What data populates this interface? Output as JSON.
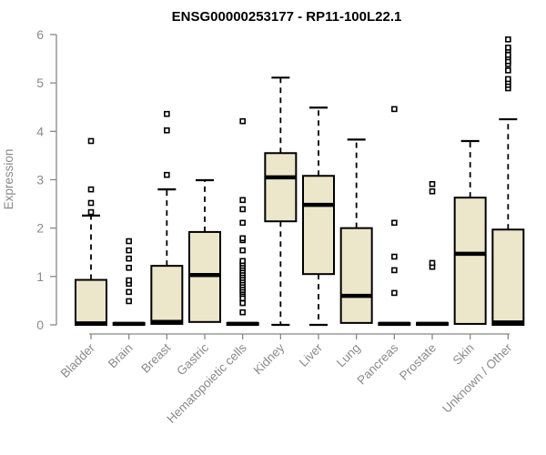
{
  "chart": {
    "colors": {
      "box_fill": "#ECE6CB",
      "box_border": "#000000",
      "median": "#000000",
      "whisker": "#000000",
      "outlier_stroke": "#000000",
      "outlier_fill": "#ffffff",
      "axis_line": "#888888",
      "axis_text": "#8A8A8A",
      "title_text": "#000000",
      "background": "#ffffff"
    }
  },
  "chart_data": {
    "type": "boxplot",
    "title": "ENSG00000253177 - RP11-100L22.1",
    "xlabel": "",
    "ylabel": "Expression",
    "ylim": [
      0,
      6
    ],
    "yticks": [
      0,
      1,
      2,
      3,
      4,
      5,
      6
    ],
    "grid": false,
    "legend": false,
    "categories": [
      "Bladder",
      "Brain",
      "Breast",
      "Gastric",
      "Hematopoietic cells",
      "Kidney",
      "Liver",
      "Lung",
      "Pancreas",
      "Prostate",
      "Skin",
      "Unknown / Other"
    ],
    "boxes": [
      {
        "label": "Bladder",
        "low": 0,
        "q1": 0,
        "median": 0.03,
        "q3": 0.93,
        "high": 2.26,
        "outliers": [
          2.33,
          2.52,
          2.8,
          3.8
        ]
      },
      {
        "label": "Brain",
        "low": 0,
        "q1": 0,
        "median": 0.02,
        "q3": 0.04,
        "high": 0.04,
        "outliers": [
          0.49,
          0.68,
          0.85,
          0.92,
          1.18,
          1.37,
          1.54,
          1.73
        ]
      },
      {
        "label": "Breast",
        "low": 0.02,
        "q1": 0.02,
        "median": 0.06,
        "q3": 1.22,
        "high": 2.8,
        "outliers": [
          3.1,
          4.02,
          4.36
        ]
      },
      {
        "label": "Gastric",
        "low": 0.06,
        "q1": 0.06,
        "median": 1.03,
        "q3": 1.92,
        "high": 2.99,
        "outliers": []
      },
      {
        "label": "Hematopoietic cells",
        "low": 0,
        "q1": 0,
        "median": 0.02,
        "q3": 0.04,
        "high": 0.04,
        "outliers": [
          0.26,
          0.45,
          0.55,
          0.64,
          0.68,
          0.72,
          0.77,
          0.82,
          0.87,
          0.92,
          0.97,
          1.02,
          1.07,
          1.12,
          1.17,
          1.22,
          1.27,
          1.32,
          1.54,
          1.75,
          1.79,
          2.11,
          2.39,
          2.58,
          4.21
        ]
      },
      {
        "label": "Kidney",
        "low": 0,
        "q1": 2.14,
        "median": 3.05,
        "q3": 3.55,
        "high": 5.11,
        "outliers": []
      },
      {
        "label": "Liver",
        "low": 0,
        "q1": 1.05,
        "median": 2.48,
        "q3": 3.08,
        "high": 4.49,
        "outliers": []
      },
      {
        "label": "Lung",
        "low": 0.04,
        "q1": 0.04,
        "median": 0.6,
        "q3": 2.0,
        "high": 3.83,
        "outliers": []
      },
      {
        "label": "Pancreas",
        "low": 0,
        "q1": 0,
        "median": 0.02,
        "q3": 0.04,
        "high": 0.04,
        "outliers": [
          0.66,
          1.13,
          1.41,
          2.11,
          4.46
        ]
      },
      {
        "label": "Prostate",
        "low": 0,
        "q1": 0,
        "median": 0.02,
        "q3": 0.04,
        "high": 0.04,
        "outliers": [
          1.2,
          1.28,
          2.76,
          2.91
        ]
      },
      {
        "label": "Skin",
        "low": 0.02,
        "q1": 0.02,
        "median": 1.47,
        "q3": 2.63,
        "high": 3.8,
        "outliers": []
      },
      {
        "label": "Unknown / Other",
        "low": 0,
        "q1": 0,
        "median": 0.05,
        "q3": 1.97,
        "high": 4.25,
        "outliers": [
          4.89,
          4.96,
          5.02,
          5.08,
          5.26,
          5.39,
          5.45,
          5.53,
          5.58,
          5.68,
          5.73,
          5.9
        ]
      }
    ]
  }
}
